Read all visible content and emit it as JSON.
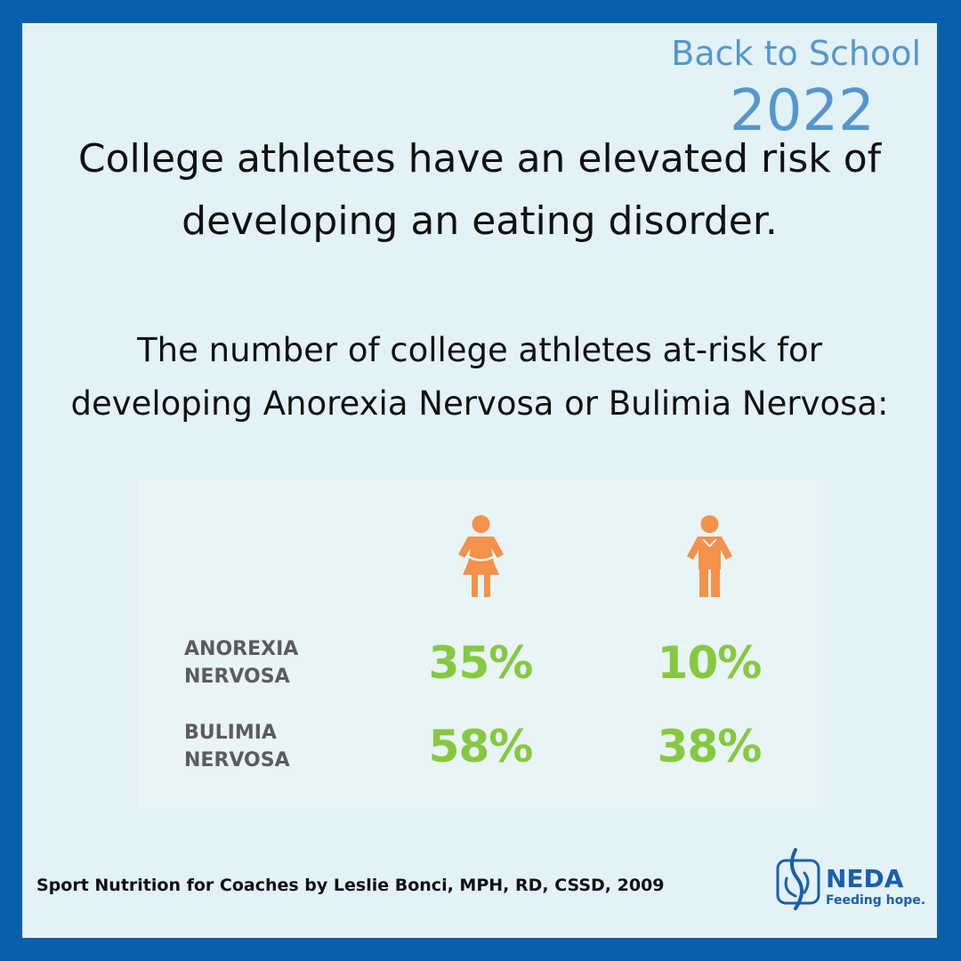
{
  "badge": {
    "line1": "Back to School",
    "line2": "2022"
  },
  "headline": {
    "line1": "College athletes have an elevated risk of",
    "line2": "developing an eating disorder."
  },
  "subhead": {
    "line1": "The number of college athletes at-risk for",
    "line2": "developing Anorexia Nervosa or Bulimia Nervosa:"
  },
  "stats": {
    "icons": [
      "female-figure-icon",
      "male-figure-icon"
    ],
    "rows": [
      {
        "label_line1": "ANOREXIA",
        "label_line2": "NERVOSA",
        "female": "35%",
        "male": "10%"
      },
      {
        "label_line1": "BULIMIA",
        "label_line2": "NERVOSA",
        "female": "58%",
        "male": "38%"
      }
    ]
  },
  "source": "Sport Nutrition for Coaches by Leslie Bonci, MPH, RD, CSSD, 2009",
  "logo": {
    "name": "NEDA",
    "tagline": "Feeding hope."
  },
  "colors": {
    "frame": "#0a5fad",
    "panel": "#e3f2f6",
    "badge": "#5596cf",
    "percent": "#86c840",
    "figure": "#f4914a",
    "label": "#5c5c5c",
    "logo": "#1b5fae"
  }
}
